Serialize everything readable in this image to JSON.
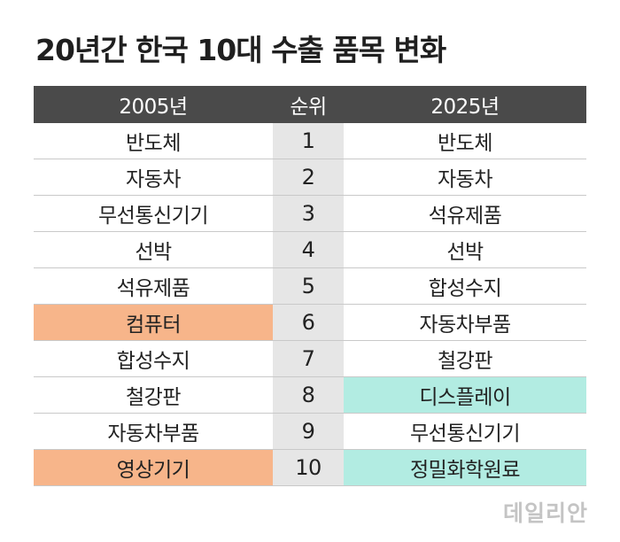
{
  "title": "20년간 한국 10대 수출 품목 변화",
  "table": {
    "headers": {
      "left": "2005년",
      "rank": "순위",
      "right": "2025년"
    },
    "rows": [
      {
        "rank": "1",
        "left": "반도체",
        "right": "반도체"
      },
      {
        "rank": "2",
        "left": "자동차",
        "right": "자동차"
      },
      {
        "rank": "3",
        "left": "무선통신기기",
        "right": "석유제품"
      },
      {
        "rank": "4",
        "left": "선박",
        "right": "선박"
      },
      {
        "rank": "5",
        "left": "석유제품",
        "right": "합성수지"
      },
      {
        "rank": "6",
        "left": "컴퓨터",
        "right": "자동차부품"
      },
      {
        "rank": "7",
        "left": "합성수지",
        "right": "철강판"
      },
      {
        "rank": "8",
        "left": "철강판",
        "right": "디스플레이"
      },
      {
        "rank": "9",
        "left": "자동차부품",
        "right": "무선통신기기"
      },
      {
        "rank": "10",
        "left": "영상기기",
        "right": "정밀화학원료"
      }
    ]
  },
  "highlight_colors": {
    "header_bg": "#4a4a4a",
    "rank_column_bg": "#e6e6e6",
    "dropped_out_2005": "#f7b58a",
    "new_entry_2025": "#b2ece2"
  },
  "watermark": "데일리안"
}
